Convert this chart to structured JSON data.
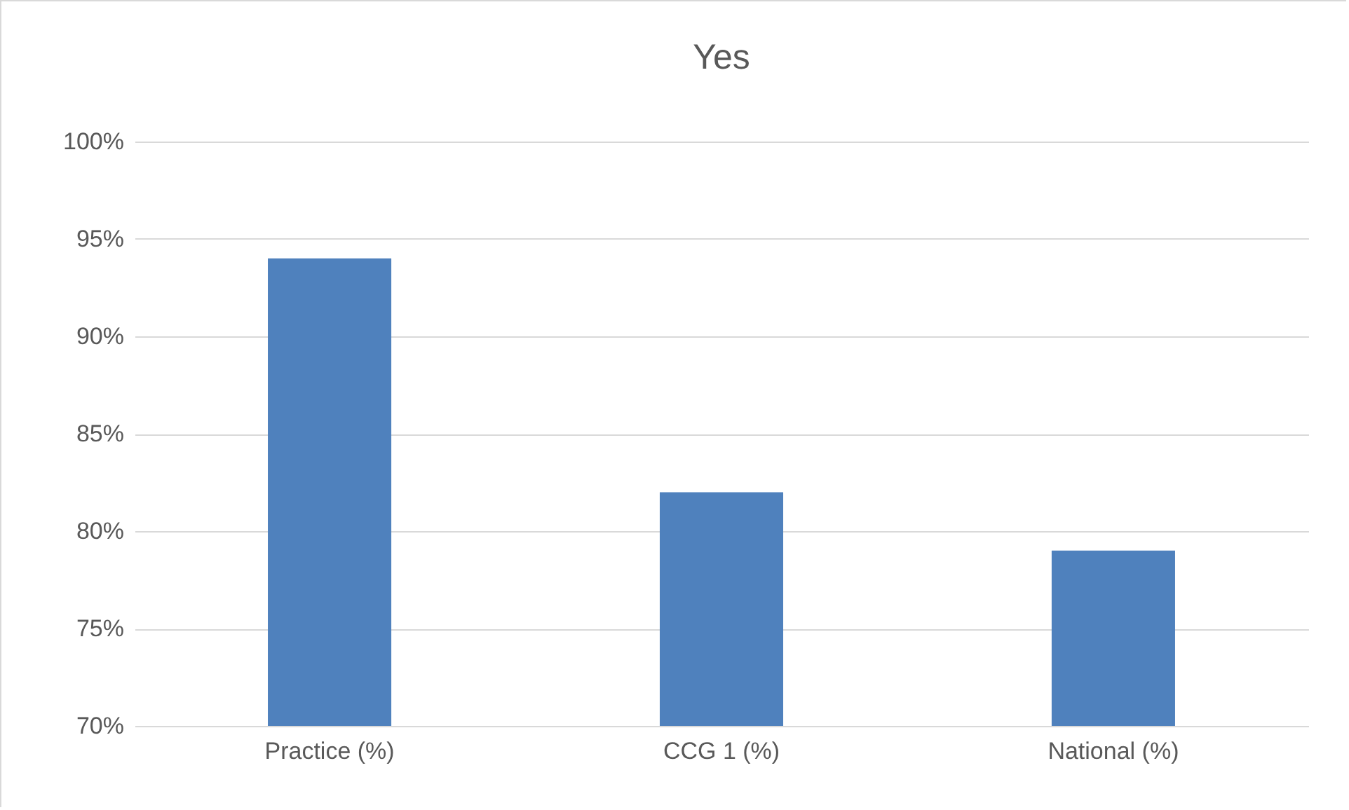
{
  "chart_data": {
    "type": "bar",
    "title": "Yes",
    "categories": [
      "Practice  (%)",
      "CCG 1 (%)",
      "National (%)"
    ],
    "values": [
      94,
      82,
      79
    ],
    "color": "#4f81bd",
    "ylim": [
      70,
      100
    ],
    "yticks": [
      {
        "value": 70,
        "label": "70%"
      },
      {
        "value": 75,
        "label": "75%"
      },
      {
        "value": 80,
        "label": "80%"
      },
      {
        "value": 85,
        "label": "85%"
      },
      {
        "value": 90,
        "label": "90%"
      },
      {
        "value": 95,
        "label": "95%"
      },
      {
        "value": 100,
        "label": "100%"
      }
    ],
    "grid": "y"
  }
}
